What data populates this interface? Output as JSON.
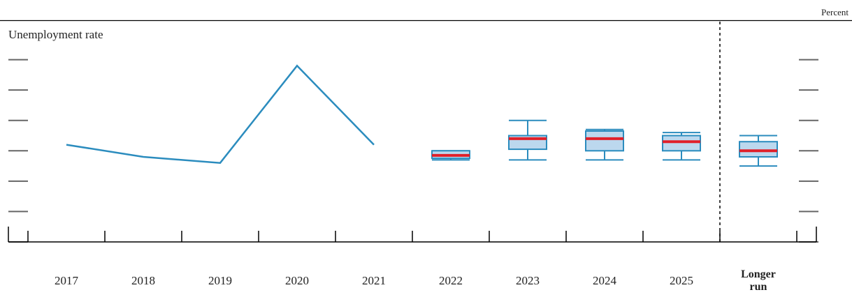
{
  "chart_data": {
    "type": "line",
    "title": "Unemployment rate",
    "unit_label": "Percent",
    "categories": [
      "2017",
      "2018",
      "2019",
      "2020",
      "2021",
      "2022",
      "2023",
      "2024",
      "2025",
      "Longer run"
    ],
    "category_label_lines": [
      [
        "2017"
      ],
      [
        "2018"
      ],
      [
        "2019"
      ],
      [
        "2020"
      ],
      [
        "2021"
      ],
      [
        "2022"
      ],
      [
        "2023"
      ],
      [
        "2024"
      ],
      [
        "2025"
      ],
      [
        "Longer",
        "run"
      ]
    ],
    "ylim": [
      1,
      8
    ],
    "yticks": [
      1,
      2,
      3,
      4,
      5,
      6,
      7
    ],
    "y_tick_labels_visible": false,
    "grid": false,
    "actual_series": {
      "x": [
        "2017",
        "2018",
        "2019",
        "2020",
        "2021"
      ],
      "values": [
        4.2,
        3.8,
        3.6,
        6.8,
        4.2
      ]
    },
    "projection_boxes": [
      {
        "category": "2022",
        "whisker_low": 3.7,
        "q1": 3.75,
        "median": 3.85,
        "q3": 4.0,
        "whisker_high": 4.0
      },
      {
        "category": "2023",
        "whisker_low": 3.7,
        "q1": 4.05,
        "median": 4.4,
        "q3": 4.5,
        "whisker_high": 5.0
      },
      {
        "category": "2024",
        "whisker_low": 3.7,
        "q1": 4.0,
        "median": 4.4,
        "q3": 4.65,
        "whisker_high": 4.7
      },
      {
        "category": "2025",
        "whisker_low": 3.7,
        "q1": 4.0,
        "median": 4.3,
        "q3": 4.5,
        "whisker_high": 4.6
      },
      {
        "category": "Longer run",
        "whisker_low": 3.5,
        "q1": 3.8,
        "median": 4.0,
        "q3": 4.3,
        "whisker_high": 4.5
      }
    ],
    "divider_before": "Longer run",
    "colors": {
      "line": "#2b8cbe",
      "box_fill": "#bcd8ee",
      "box_edge": "#2b8cbe",
      "median": "#e0202a",
      "axis": "#000000",
      "ticks": "#666666"
    }
  }
}
